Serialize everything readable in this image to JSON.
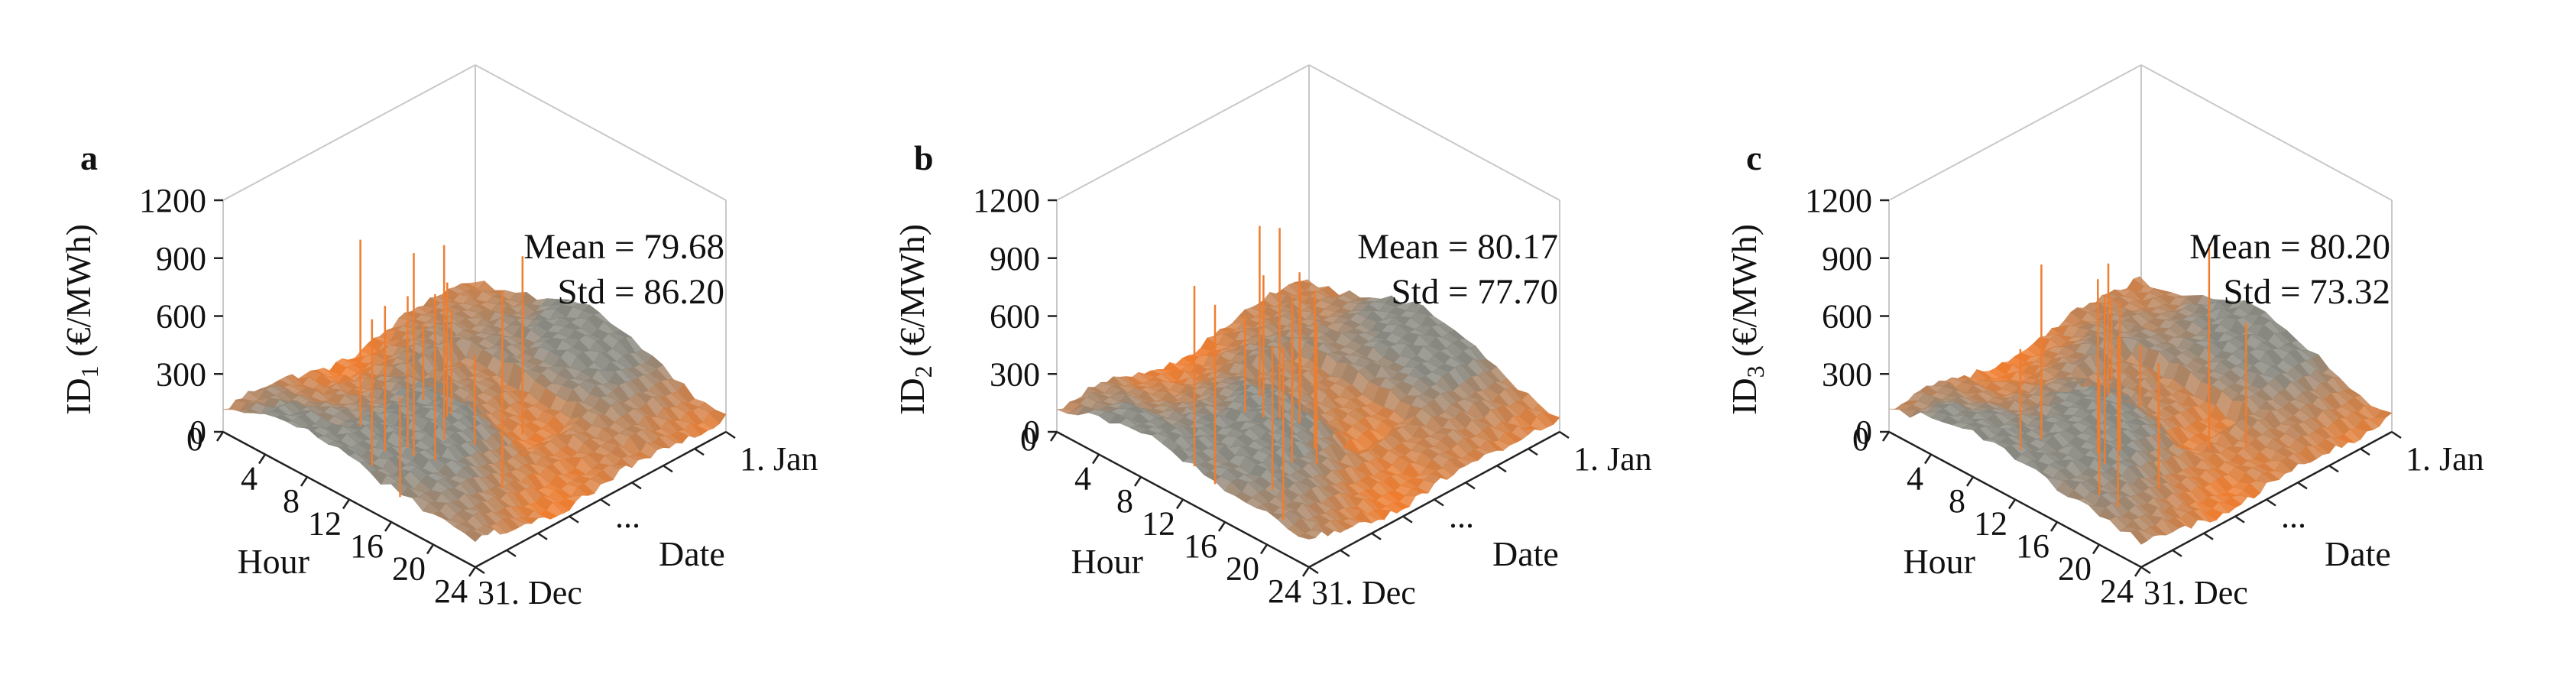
{
  "chart_data": [
    {
      "type": "surface",
      "panel_label": "a",
      "zlabel_main": "ID",
      "zlabel_sub": "1",
      "zlabel_unit": " (€/MWh)",
      "xlabel": "Hour",
      "ylabel": "Date",
      "z_ticks": [
        "0",
        "300",
        "600",
        "900",
        "1200"
      ],
      "x_ticks": [
        "0",
        "4",
        "8",
        "12",
        "16",
        "20",
        "24"
      ],
      "y_ticks": [
        "1. Jan",
        "...",
        "31. Dec"
      ],
      "zlim": [
        0,
        1200
      ],
      "xlim": [
        0,
        24
      ],
      "annotations": [
        "Mean = 79.68",
        "Std = 86.20"
      ],
      "mean": 79.68,
      "std": 86.2,
      "colors": {
        "low": "#ef7d2f",
        "high": "#888880"
      }
    },
    {
      "type": "surface",
      "panel_label": "b",
      "zlabel_main": "ID",
      "zlabel_sub": "2",
      "zlabel_unit": " (€/MWh)",
      "xlabel": "Hour",
      "ylabel": "Date",
      "z_ticks": [
        "0",
        "300",
        "600",
        "900",
        "1200"
      ],
      "x_ticks": [
        "0",
        "4",
        "8",
        "12",
        "16",
        "20",
        "24"
      ],
      "y_ticks": [
        "1. Jan",
        "...",
        "31. Dec"
      ],
      "zlim": [
        0,
        1200
      ],
      "xlim": [
        0,
        24
      ],
      "annotations": [
        "Mean = 80.17",
        "Std = 77.70"
      ],
      "mean": 80.17,
      "std": 77.7,
      "colors": {
        "low": "#ef7d2f",
        "high": "#888880"
      }
    },
    {
      "type": "surface",
      "panel_label": "c",
      "zlabel_main": "ID",
      "zlabel_sub": "3",
      "zlabel_unit": " (€/MWh)",
      "xlabel": "Hour",
      "ylabel": "Date",
      "z_ticks": [
        "0",
        "300",
        "600",
        "900",
        "1200"
      ],
      "x_ticks": [
        "0",
        "4",
        "8",
        "12",
        "16",
        "20",
        "24"
      ],
      "y_ticks": [
        "1. Jan",
        "...",
        "31. Dec"
      ],
      "zlim": [
        0,
        1200
      ],
      "xlim": [
        0,
        24
      ],
      "annotations": [
        "Mean = 80.20",
        "Std = 73.32"
      ],
      "mean": 80.2,
      "std": 73.32,
      "colors": {
        "low": "#ef7d2f",
        "high": "#888880"
      }
    }
  ]
}
